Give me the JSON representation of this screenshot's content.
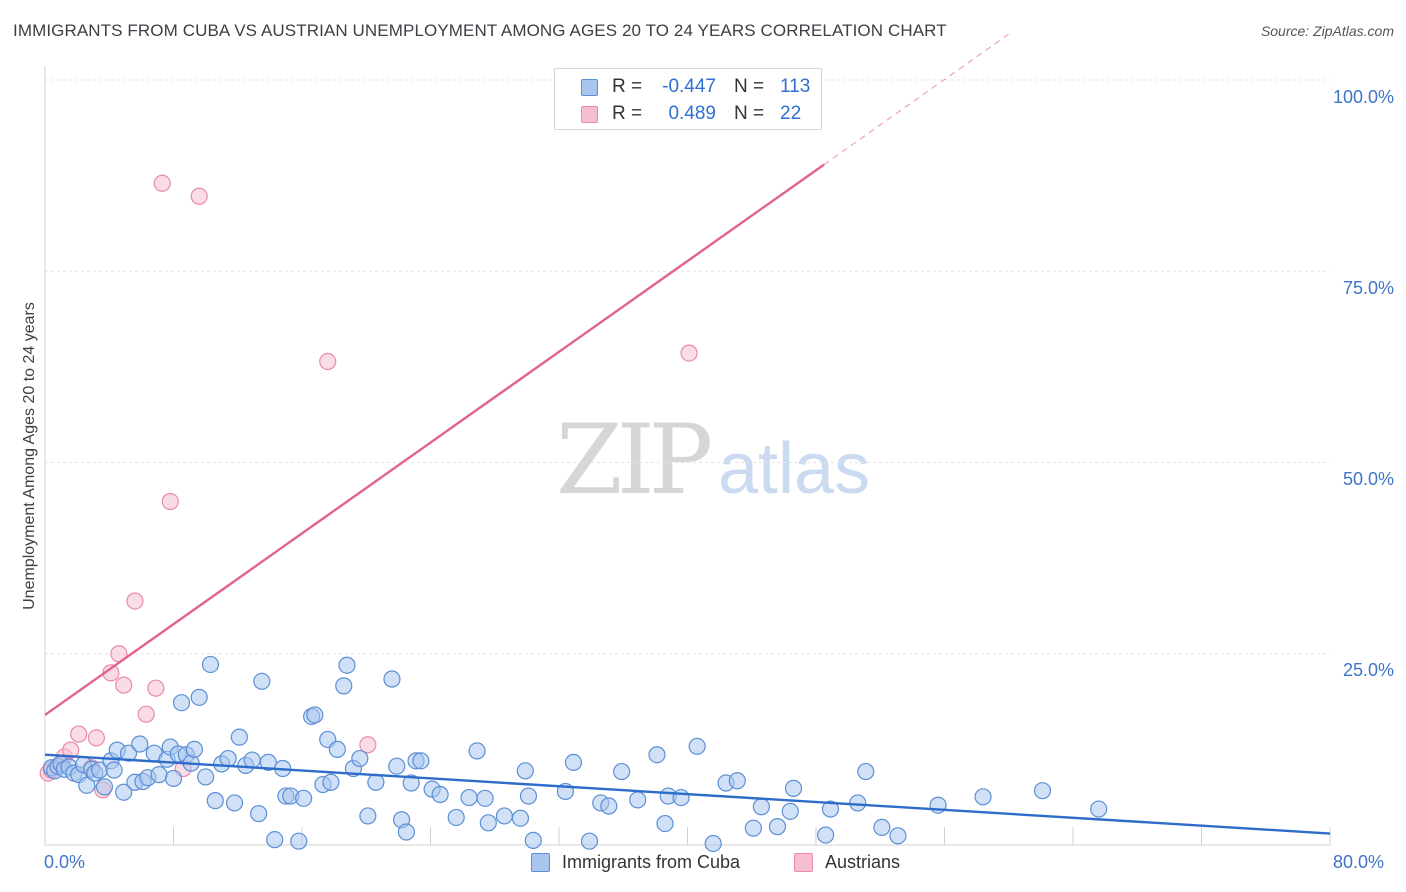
{
  "header": {
    "title": "IMMIGRANTS FROM CUBA VS AUSTRIAN UNEMPLOYMENT AMONG AGES 20 TO 24 YEARS CORRELATION CHART",
    "source": "Source: ZipAtlas.com"
  },
  "watermark": {
    "zip": "ZIP",
    "atlas": "atlas"
  },
  "colors": {
    "blue_fill": "#a9c6ee",
    "blue_stroke": "#5b8fd6",
    "blue_line": "#2d6cc9",
    "pink_fill": "#f6bfd0",
    "pink_stroke": "#e98aa9",
    "pink_line": "#e0628d",
    "tick_text": "#3f74c9"
  },
  "legend_top": {
    "rows": [
      {
        "label": "R =",
        "r": "-0.447",
        "n_label": "N =",
        "n": "113",
        "color": "blue"
      },
      {
        "label": "R =",
        "r": "0.489",
        "n_label": "N =",
        "n": "22",
        "color": "pink"
      }
    ]
  },
  "legend_bottom": {
    "items": [
      "Immigrants from Cuba",
      "Austrians"
    ]
  },
  "chart_data": {
    "type": "scatter",
    "title": "IMMIGRANTS FROM CUBA VS AUSTRIAN UNEMPLOYMENT AMONG AGES 20 TO 24 YEARS CORRELATION CHART",
    "xlabel": "",
    "ylabel": "Unemployment Among Ages 20 to 24 years",
    "xlim": [
      0,
      80
    ],
    "ylim": [
      0,
      100
    ],
    "x_tick_labels": [
      "0.0%",
      "80.0%"
    ],
    "y_ticks": [
      25,
      50,
      75,
      100
    ],
    "y_tick_labels": [
      "25.0%",
      "50.0%",
      "75.0%",
      "100.0%"
    ],
    "grid": true,
    "series": [
      {
        "name": "Immigrants from Cuba",
        "color": "blue",
        "r": -0.447,
        "n": 113,
        "trend": {
          "x": [
            0,
            80
          ],
          "y": [
            11.8,
            1.5
          ],
          "solid_to": 80
        },
        "points": [
          [
            0.4,
            10.1
          ],
          [
            0.6,
            9.7
          ],
          [
            0.8,
            10.3
          ],
          [
            1.0,
            10.6
          ],
          [
            1.2,
            9.9
          ],
          [
            1.5,
            10.2
          ],
          [
            1.8,
            9.4
          ],
          [
            2.1,
            9.2
          ],
          [
            2.4,
            10.5
          ],
          [
            2.6,
            7.8
          ],
          [
            2.9,
            9.9
          ],
          [
            3.1,
            9.4
          ],
          [
            3.4,
            9.8
          ],
          [
            3.7,
            7.6
          ],
          [
            4.1,
            11.0
          ],
          [
            4.3,
            9.8
          ],
          [
            4.5,
            12.4
          ],
          [
            4.9,
            6.9
          ],
          [
            5.2,
            12.0
          ],
          [
            5.6,
            8.2
          ],
          [
            5.9,
            13.2
          ],
          [
            6.1,
            8.3
          ],
          [
            6.4,
            8.8
          ],
          [
            6.8,
            12.0
          ],
          [
            7.1,
            9.2
          ],
          [
            7.6,
            11.2
          ],
          [
            7.8,
            12.8
          ],
          [
            8.0,
            8.7
          ],
          [
            8.3,
            11.9
          ],
          [
            8.5,
            18.6
          ],
          [
            8.8,
            11.8
          ],
          [
            9.1,
            10.7
          ],
          [
            9.3,
            12.5
          ],
          [
            9.6,
            19.3
          ],
          [
            10.0,
            8.9
          ],
          [
            10.3,
            23.6
          ],
          [
            10.6,
            5.8
          ],
          [
            11.0,
            10.6
          ],
          [
            11.4,
            11.3
          ],
          [
            11.8,
            5.5
          ],
          [
            12.1,
            14.1
          ],
          [
            12.5,
            10.4
          ],
          [
            12.9,
            11.1
          ],
          [
            13.3,
            4.1
          ],
          [
            13.5,
            21.4
          ],
          [
            13.9,
            10.8
          ],
          [
            14.3,
            0.7
          ],
          [
            14.8,
            10.0
          ],
          [
            15.0,
            6.4
          ],
          [
            15.3,
            6.4
          ],
          [
            15.8,
            0.5
          ],
          [
            16.1,
            6.1
          ],
          [
            16.6,
            16.8
          ],
          [
            16.8,
            17.0
          ],
          [
            17.3,
            7.9
          ],
          [
            17.6,
            13.8
          ],
          [
            17.8,
            8.2
          ],
          [
            18.2,
            12.5
          ],
          [
            18.6,
            20.8
          ],
          [
            18.8,
            23.5
          ],
          [
            19.2,
            10.0
          ],
          [
            19.6,
            11.3
          ],
          [
            20.1,
            3.8
          ],
          [
            20.6,
            8.2
          ],
          [
            21.6,
            21.7
          ],
          [
            21.9,
            10.3
          ],
          [
            22.2,
            3.3
          ],
          [
            22.5,
            1.7
          ],
          [
            22.8,
            8.1
          ],
          [
            23.1,
            11.0
          ],
          [
            23.4,
            11.0
          ],
          [
            24.1,
            7.3
          ],
          [
            24.6,
            6.6
          ],
          [
            25.6,
            3.6
          ],
          [
            26.4,
            6.2
          ],
          [
            26.9,
            12.3
          ],
          [
            27.4,
            6.1
          ],
          [
            27.6,
            2.9
          ],
          [
            28.6,
            3.8
          ],
          [
            29.6,
            3.5
          ],
          [
            29.9,
            9.7
          ],
          [
            30.1,
            6.4
          ],
          [
            30.4,
            0.6
          ],
          [
            32.4,
            7.0
          ],
          [
            32.9,
            10.8
          ],
          [
            33.9,
            0.5
          ],
          [
            34.6,
            5.5
          ],
          [
            35.1,
            5.1
          ],
          [
            35.9,
            9.6
          ],
          [
            36.9,
            5.9
          ],
          [
            38.1,
            11.8
          ],
          [
            38.6,
            2.8
          ],
          [
            38.8,
            6.4
          ],
          [
            39.6,
            6.2
          ],
          [
            40.6,
            12.9
          ],
          [
            41.6,
            0.2
          ],
          [
            42.4,
            8.1
          ],
          [
            43.1,
            8.4
          ],
          [
            44.1,
            2.2
          ],
          [
            44.6,
            5.0
          ],
          [
            45.6,
            2.4
          ],
          [
            46.4,
            4.4
          ],
          [
            46.6,
            7.4
          ],
          [
            48.6,
            1.3
          ],
          [
            48.9,
            4.7
          ],
          [
            50.6,
            5.5
          ],
          [
            51.1,
            9.6
          ],
          [
            52.1,
            2.3
          ],
          [
            53.1,
            1.2
          ],
          [
            55.6,
            5.2
          ],
          [
            58.4,
            6.3
          ],
          [
            62.1,
            7.1
          ],
          [
            65.6,
            4.7
          ]
        ]
      },
      {
        "name": "Austrians",
        "color": "pink",
        "r": 0.489,
        "n": 22,
        "trend": {
          "x": [
            0,
            60
          ],
          "y": [
            17.0,
            106.0
          ],
          "solid_to": 48.5
        },
        "points": [
          [
            0.2,
            9.4
          ],
          [
            0.4,
            9.8
          ],
          [
            0.9,
            10.5
          ],
          [
            1.2,
            11.5
          ],
          [
            1.6,
            12.4
          ],
          [
            2.1,
            14.5
          ],
          [
            2.9,
            10.1
          ],
          [
            3.2,
            14.0
          ],
          [
            3.6,
            7.2
          ],
          [
            4.1,
            22.5
          ],
          [
            4.6,
            25.0
          ],
          [
            4.9,
            20.9
          ],
          [
            5.6,
            31.9
          ],
          [
            6.3,
            17.1
          ],
          [
            6.9,
            20.5
          ],
          [
            7.3,
            86.5
          ],
          [
            7.8,
            44.9
          ],
          [
            8.6,
            10.0
          ],
          [
            9.6,
            84.8
          ],
          [
            17.6,
            63.2
          ],
          [
            20.1,
            13.1
          ],
          [
            40.1,
            64.3
          ]
        ]
      }
    ]
  }
}
